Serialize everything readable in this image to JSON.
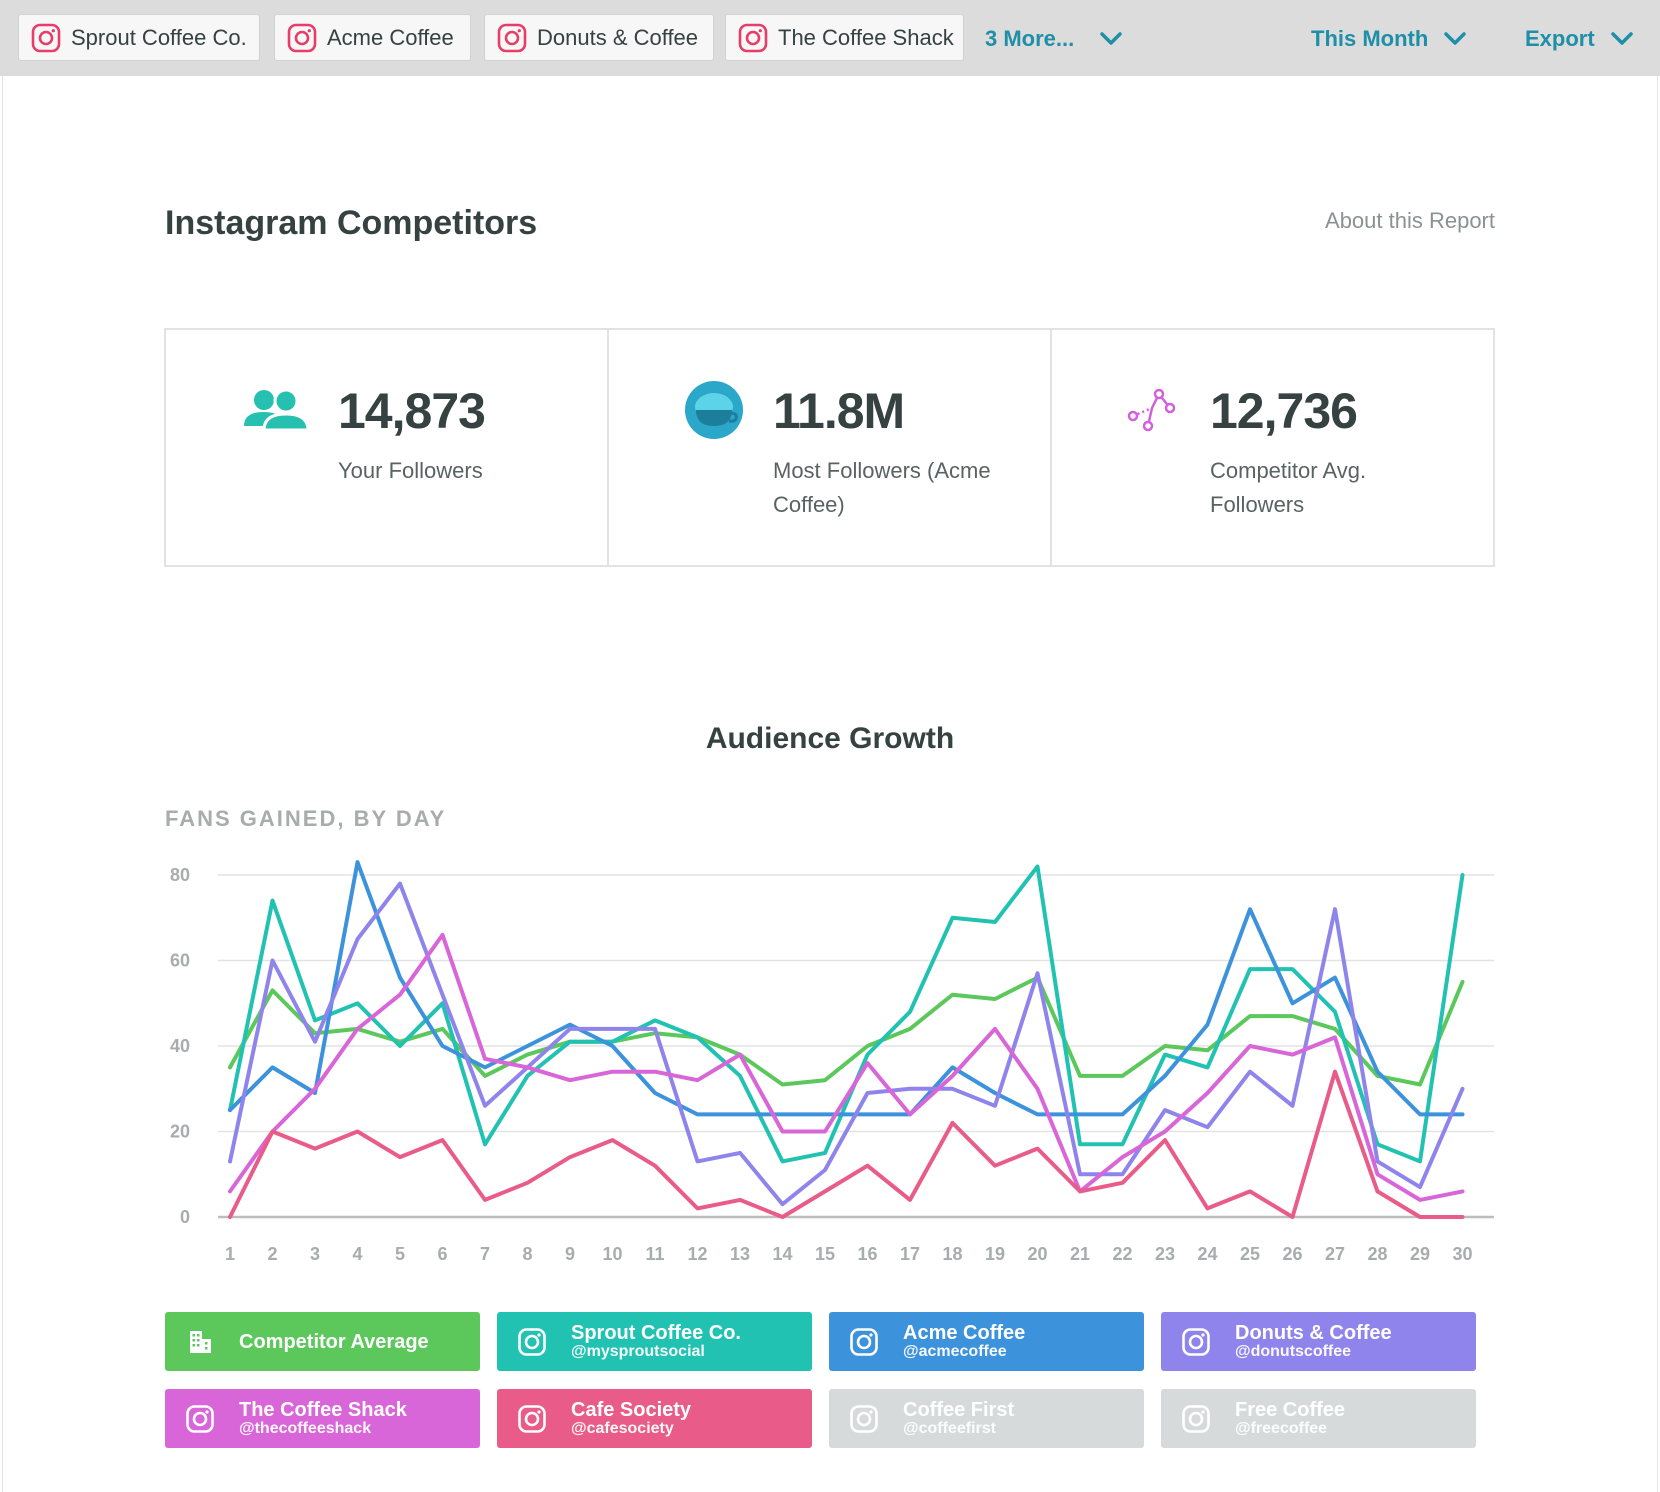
{
  "topbar": {
    "profiles": [
      {
        "label": "Sprout Coffee Co.",
        "icon": "instagram-icon"
      },
      {
        "label": "Acme Coffee",
        "icon": "instagram-icon"
      },
      {
        "label": "Donuts & Coffee",
        "icon": "instagram-icon"
      },
      {
        "label": "The Coffee Shack",
        "icon": "instagram-icon"
      }
    ],
    "more_label": "3 More...",
    "date_range_label": "This Month",
    "export_label": "Export",
    "accent_color": "#1e8fa7"
  },
  "page": {
    "title": "Instagram Competitors",
    "about_link": "About this Report"
  },
  "stats": [
    {
      "value": "14,873",
      "label": "Your Followers",
      "icon": "users-icon",
      "color": "#26c0b0"
    },
    {
      "value": "11.8M",
      "label": "Most Followers (Acme Coffee)",
      "icon": "coffee-cup-icon",
      "color": "#2aa7c9"
    },
    {
      "value": "12,736",
      "label": "Competitor Avg. Followers",
      "icon": "network-icon",
      "color": "#d260dc"
    }
  ],
  "chart": {
    "title": "Audience Growth",
    "subtitle": "FANS GAINED, BY DAY"
  },
  "chart_data": {
    "type": "line",
    "x": [
      1,
      2,
      3,
      4,
      5,
      6,
      7,
      8,
      9,
      10,
      11,
      12,
      13,
      14,
      15,
      16,
      17,
      18,
      19,
      20,
      21,
      22,
      23,
      24,
      25,
      26,
      27,
      28,
      29,
      30
    ],
    "ylim": [
      0,
      80
    ],
    "yticks": [
      0,
      20,
      40,
      60,
      80
    ],
    "grid": true,
    "series": [
      {
        "name": "Competitor Average",
        "color": "#5cc85c",
        "values": [
          35,
          53,
          43,
          44,
          41,
          44,
          33,
          38,
          41,
          41,
          43,
          42,
          38,
          31,
          32,
          40,
          44,
          52,
          51,
          56,
          33,
          33,
          40,
          39,
          47,
          47,
          44,
          33,
          31,
          55
        ]
      },
      {
        "name": "Sprout Coffee Co.",
        "color": "#22c2b2",
        "values": [
          25,
          74,
          46,
          50,
          40,
          50,
          17,
          33,
          41,
          41,
          46,
          42,
          33,
          13,
          15,
          38,
          48,
          70,
          69,
          82,
          17,
          17,
          38,
          35,
          58,
          58,
          48,
          17,
          13,
          80
        ]
      },
      {
        "name": "Acme Coffee",
        "color": "#3d92dc",
        "values": [
          25,
          35,
          29,
          83,
          56,
          40,
          35,
          40,
          45,
          40,
          29,
          24,
          24,
          24,
          24,
          24,
          24,
          35,
          29,
          24,
          24,
          24,
          33,
          45,
          72,
          50,
          56,
          34,
          24,
          24
        ]
      },
      {
        "name": "Donuts & Coffee",
        "color": "#8e84ec",
        "values": [
          13,
          60,
          41,
          65,
          78,
          52,
          26,
          35,
          44,
          44,
          44,
          13,
          15,
          3,
          11,
          29,
          30,
          30,
          26,
          57,
          10,
          10,
          25,
          21,
          34,
          26,
          72,
          13,
          7,
          30
        ]
      },
      {
        "name": "The Coffee Shack",
        "color": "#d866d8",
        "values": [
          6,
          20,
          30,
          44,
          52,
          66,
          37,
          35,
          32,
          34,
          34,
          32,
          38,
          20,
          20,
          36,
          24,
          33,
          44,
          30,
          6,
          14,
          20,
          29,
          40,
          38,
          42,
          10,
          4,
          6
        ]
      },
      {
        "name": "Cafe Society",
        "color": "#e95b88",
        "values": [
          0,
          20,
          16,
          20,
          14,
          18,
          4,
          8,
          14,
          18,
          12,
          2,
          4,
          0,
          6,
          12,
          4,
          22,
          12,
          16,
          6,
          8,
          18,
          2,
          6,
          0,
          34,
          6,
          0,
          0
        ]
      }
    ]
  },
  "legend": [
    {
      "name": "Competitor Average",
      "handle": "",
      "color": "#5cc85c",
      "icon": "building-icon"
    },
    {
      "name": "Sprout Coffee Co.",
      "handle": "@mysproutsocial",
      "color": "#22c2b2",
      "icon": "instagram-icon"
    },
    {
      "name": "Acme Coffee",
      "handle": "@acmecoffee",
      "color": "#3d92dc",
      "icon": "instagram-icon"
    },
    {
      "name": "Donuts & Coffee",
      "handle": "@donutscoffee",
      "color": "#8e84ec",
      "icon": "instagram-icon"
    },
    {
      "name": "The Coffee Shack",
      "handle": "@thecoffeeshack",
      "color": "#d866d8",
      "icon": "instagram-icon"
    },
    {
      "name": "Cafe Society",
      "handle": "@cafesociety",
      "color": "#e95b88",
      "icon": "instagram-icon"
    },
    {
      "name": "Coffee First",
      "handle": "@coffeefirst",
      "color": "#d7dada",
      "icon": "instagram-icon"
    },
    {
      "name": "Free Coffee",
      "handle": "@freecoffee",
      "color": "#d7dada",
      "icon": "instagram-icon"
    }
  ]
}
